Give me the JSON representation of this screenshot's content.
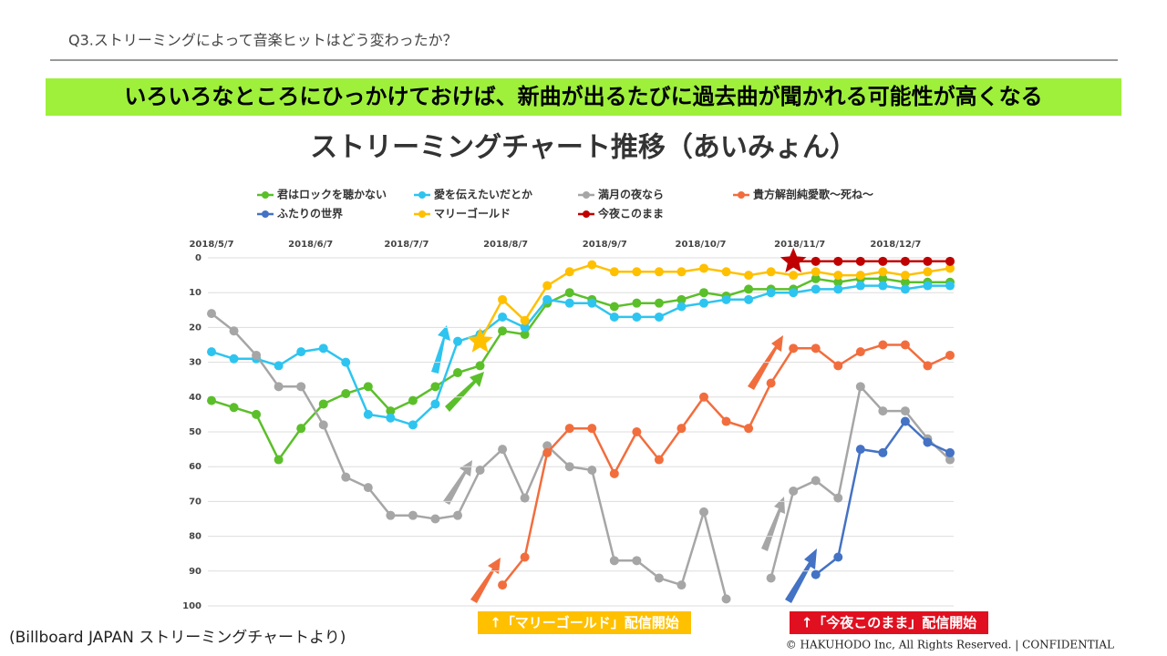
{
  "header": {
    "question": "Q3.ストリーミングによって音楽ヒットはどう変わったか？",
    "banner": "いろいろなところにひっかけておけば、新曲が出るたびに過去曲が聞かれる可能性が高くなる"
  },
  "chart_data": {
    "type": "line",
    "title": "ストリーミングチャート推移（あいみょん）",
    "x": [
      "2018/5/7",
      "2018/5/14",
      "2018/5/21",
      "2018/5/28",
      "2018/6/4",
      "2018/6/11",
      "2018/6/18",
      "2018/6/25",
      "2018/7/2",
      "2018/7/9",
      "2018/7/16",
      "2018/7/23",
      "2018/7/30",
      "2018/8/6",
      "2018/8/13",
      "2018/8/20",
      "2018/8/27",
      "2018/9/3",
      "2018/9/10",
      "2018/9/17",
      "2018/9/24",
      "2018/10/1",
      "2018/10/8",
      "2018/10/15",
      "2018/10/22",
      "2018/10/29",
      "2018/11/5",
      "2018/11/12",
      "2018/11/19",
      "2018/11/26",
      "2018/12/3",
      "2018/12/10",
      "2018/12/17",
      "2018/12/24"
    ],
    "xlim": [
      "2018/5/7",
      "2018/12/24"
    ],
    "xticks": [
      "2018/5/7",
      "2018/6/7",
      "2018/7/7",
      "2018/8/7",
      "2018/9/7",
      "2018/10/7",
      "2018/11/7",
      "2018/12/7"
    ],
    "ylim": [
      0,
      100
    ],
    "y_inverted": true,
    "yticks": [
      0,
      10,
      20,
      30,
      40,
      50,
      60,
      70,
      80,
      90,
      100
    ],
    "grid": true,
    "series": [
      {
        "name": "君はロックを聴かない",
        "color": "#5bbf2a",
        "values": [
          41,
          43,
          45,
          58,
          49,
          42,
          39,
          37,
          44,
          41,
          37,
          33,
          31,
          21,
          22,
          13,
          10,
          12,
          14,
          13,
          13,
          12,
          10,
          11,
          9,
          9,
          9,
          6,
          7,
          6,
          6,
          7,
          7,
          7
        ]
      },
      {
        "name": "愛を伝えたいだとか",
        "color": "#2ec4f0",
        "values": [
          27,
          29,
          29,
          31,
          27,
          26,
          30,
          45,
          46,
          48,
          42,
          24,
          22,
          17,
          20,
          12,
          13,
          13,
          17,
          17,
          17,
          14,
          13,
          12,
          12,
          10,
          10,
          9,
          9,
          8,
          8,
          9,
          8,
          8
        ]
      },
      {
        "name": "満月の夜なら",
        "color": "#a6a6a6",
        "values": [
          16,
          21,
          28,
          37,
          37,
          48,
          63,
          66,
          74,
          74,
          75,
          74,
          61,
          55,
          69,
          54,
          60,
          61,
          87,
          87,
          92,
          94,
          73,
          98,
          null,
          92,
          67,
          64,
          69,
          37,
          44,
          44,
          52,
          58
        ]
      },
      {
        "name": "貴方解剖純愛歌～死ね～",
        "color": "#f26d3d",
        "values": [
          null,
          null,
          null,
          null,
          null,
          null,
          null,
          null,
          null,
          null,
          null,
          null,
          null,
          94,
          86,
          56,
          49,
          49,
          62,
          50,
          58,
          49,
          40,
          47,
          49,
          36,
          26,
          26,
          31,
          27,
          25,
          25,
          31,
          28
        ]
      },
      {
        "name": "ふたりの世界",
        "color": "#4472c4",
        "values": [
          null,
          null,
          null,
          null,
          null,
          null,
          null,
          null,
          null,
          null,
          null,
          null,
          null,
          null,
          null,
          null,
          null,
          null,
          null,
          null,
          null,
          null,
          null,
          null,
          null,
          null,
          null,
          91,
          86,
          55,
          56,
          47,
          53,
          56
        ]
      },
      {
        "name": "マリーゴールド",
        "color": "#ffc000",
        "first_marker": "star",
        "values": [
          null,
          null,
          null,
          null,
          null,
          null,
          null,
          null,
          null,
          null,
          null,
          null,
          24,
          12,
          18,
          8,
          4,
          2,
          4,
          4,
          4,
          4,
          3,
          4,
          5,
          4,
          5,
          4,
          5,
          5,
          4,
          5,
          4,
          3
        ]
      },
      {
        "name": "今夜このまま",
        "color": "#c00000",
        "first_marker": "star",
        "values": [
          null,
          null,
          null,
          null,
          null,
          null,
          null,
          null,
          null,
          null,
          null,
          null,
          null,
          null,
          null,
          null,
          null,
          null,
          null,
          null,
          null,
          null,
          null,
          null,
          null,
          null,
          1,
          1,
          1,
          1,
          1,
          1,
          1,
          1
        ]
      }
    ],
    "annotations": [
      "↑「マリーゴールド」配信開始",
      "↑「今夜このまま」配信開始"
    ]
  },
  "footer": {
    "source": "(Billboard JAPAN ストリーミングチャートより)",
    "copyright": "© HAKUHODO Inc, All Rights Reserved. | CONFIDENTIAL"
  }
}
